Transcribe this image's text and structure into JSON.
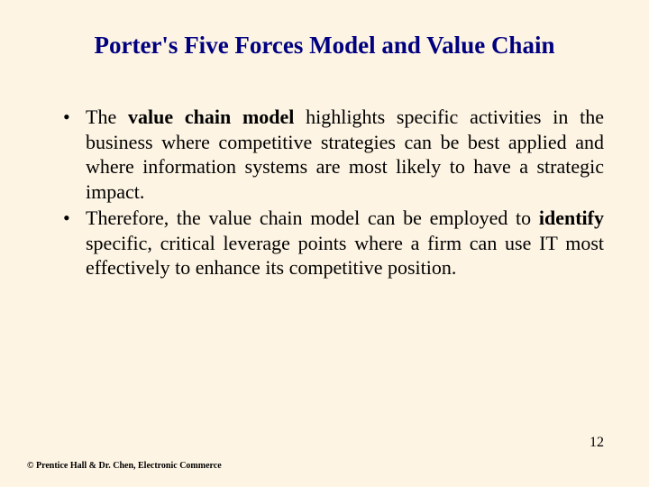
{
  "slide": {
    "title": "Porter's Five Forces Model and Value Chain",
    "background_color": "#fdf4e3",
    "title_color": "#000080",
    "title_fontsize": 27,
    "body_color": "#000000",
    "body_fontsize": 22,
    "bullets": [
      {
        "pre": "The ",
        "bold": "value chain model",
        "post": " highlights specific activities in the business where competitive strategies can be best applied and where information systems are most likely to have a strategic impact."
      },
      {
        "pre": "Therefore, the value chain model can be employed to ",
        "bold": "identify",
        "post": " specific, critical leverage points where a firm can use IT most effectively to enhance its competitive position."
      }
    ],
    "page_number": "12",
    "footer": "© Prentice Hall & Dr. Chen, Electronic Commerce"
  }
}
